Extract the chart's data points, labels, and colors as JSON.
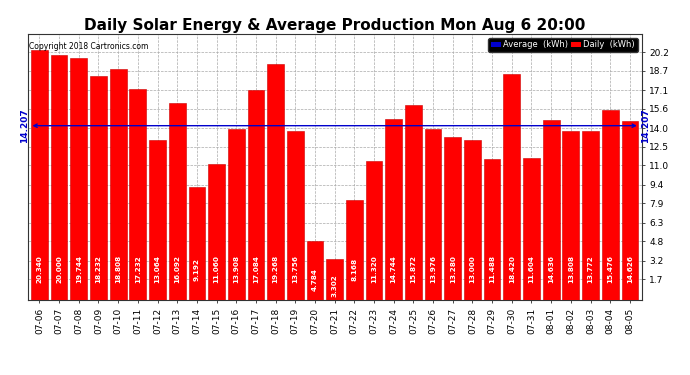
{
  "title": "Daily Solar Energy & Average Production Mon Aug 6 20:00",
  "copyright": "Copyright 2018 Cartronics.com",
  "average_value": 14.207,
  "average_label": "14.207",
  "categories": [
    "07-06",
    "07-07",
    "07-08",
    "07-09",
    "07-10",
    "07-11",
    "07-12",
    "07-13",
    "07-14",
    "07-15",
    "07-16",
    "07-17",
    "07-18",
    "07-19",
    "07-20",
    "07-21",
    "07-22",
    "07-23",
    "07-24",
    "07-25",
    "07-26",
    "07-27",
    "07-28",
    "07-29",
    "07-30",
    "07-31",
    "08-01",
    "08-02",
    "08-03",
    "08-04",
    "08-05"
  ],
  "values": [
    20.34,
    20.0,
    19.744,
    18.232,
    18.808,
    17.232,
    13.064,
    16.092,
    9.192,
    11.06,
    13.908,
    17.084,
    19.268,
    13.756,
    4.784,
    3.302,
    8.168,
    11.32,
    14.744,
    15.872,
    13.976,
    13.28,
    13.0,
    11.488,
    18.42,
    11.604,
    14.636,
    13.808,
    13.772,
    15.476,
    14.626
  ],
  "bar_color": "#ff0000",
  "bar_edge_color": "#cc0000",
  "bg_color": "#ffffff",
  "plot_bg_color": "#ffffff",
  "grid_color": "#aaaaaa",
  "text_color_value": "#ffffff",
  "avg_line_color": "#0000cc",
  "ylim": [
    0,
    21.7
  ],
  "yticks": [
    1.7,
    3.2,
    4.8,
    6.3,
    7.9,
    9.4,
    11.0,
    12.5,
    14.0,
    15.6,
    17.1,
    18.7,
    20.2
  ],
  "legend_avg_color": "#0000cc",
  "legend_daily_color": "#ff0000",
  "title_fontsize": 11,
  "tick_fontsize": 6.5,
  "value_fontsize": 5.2
}
